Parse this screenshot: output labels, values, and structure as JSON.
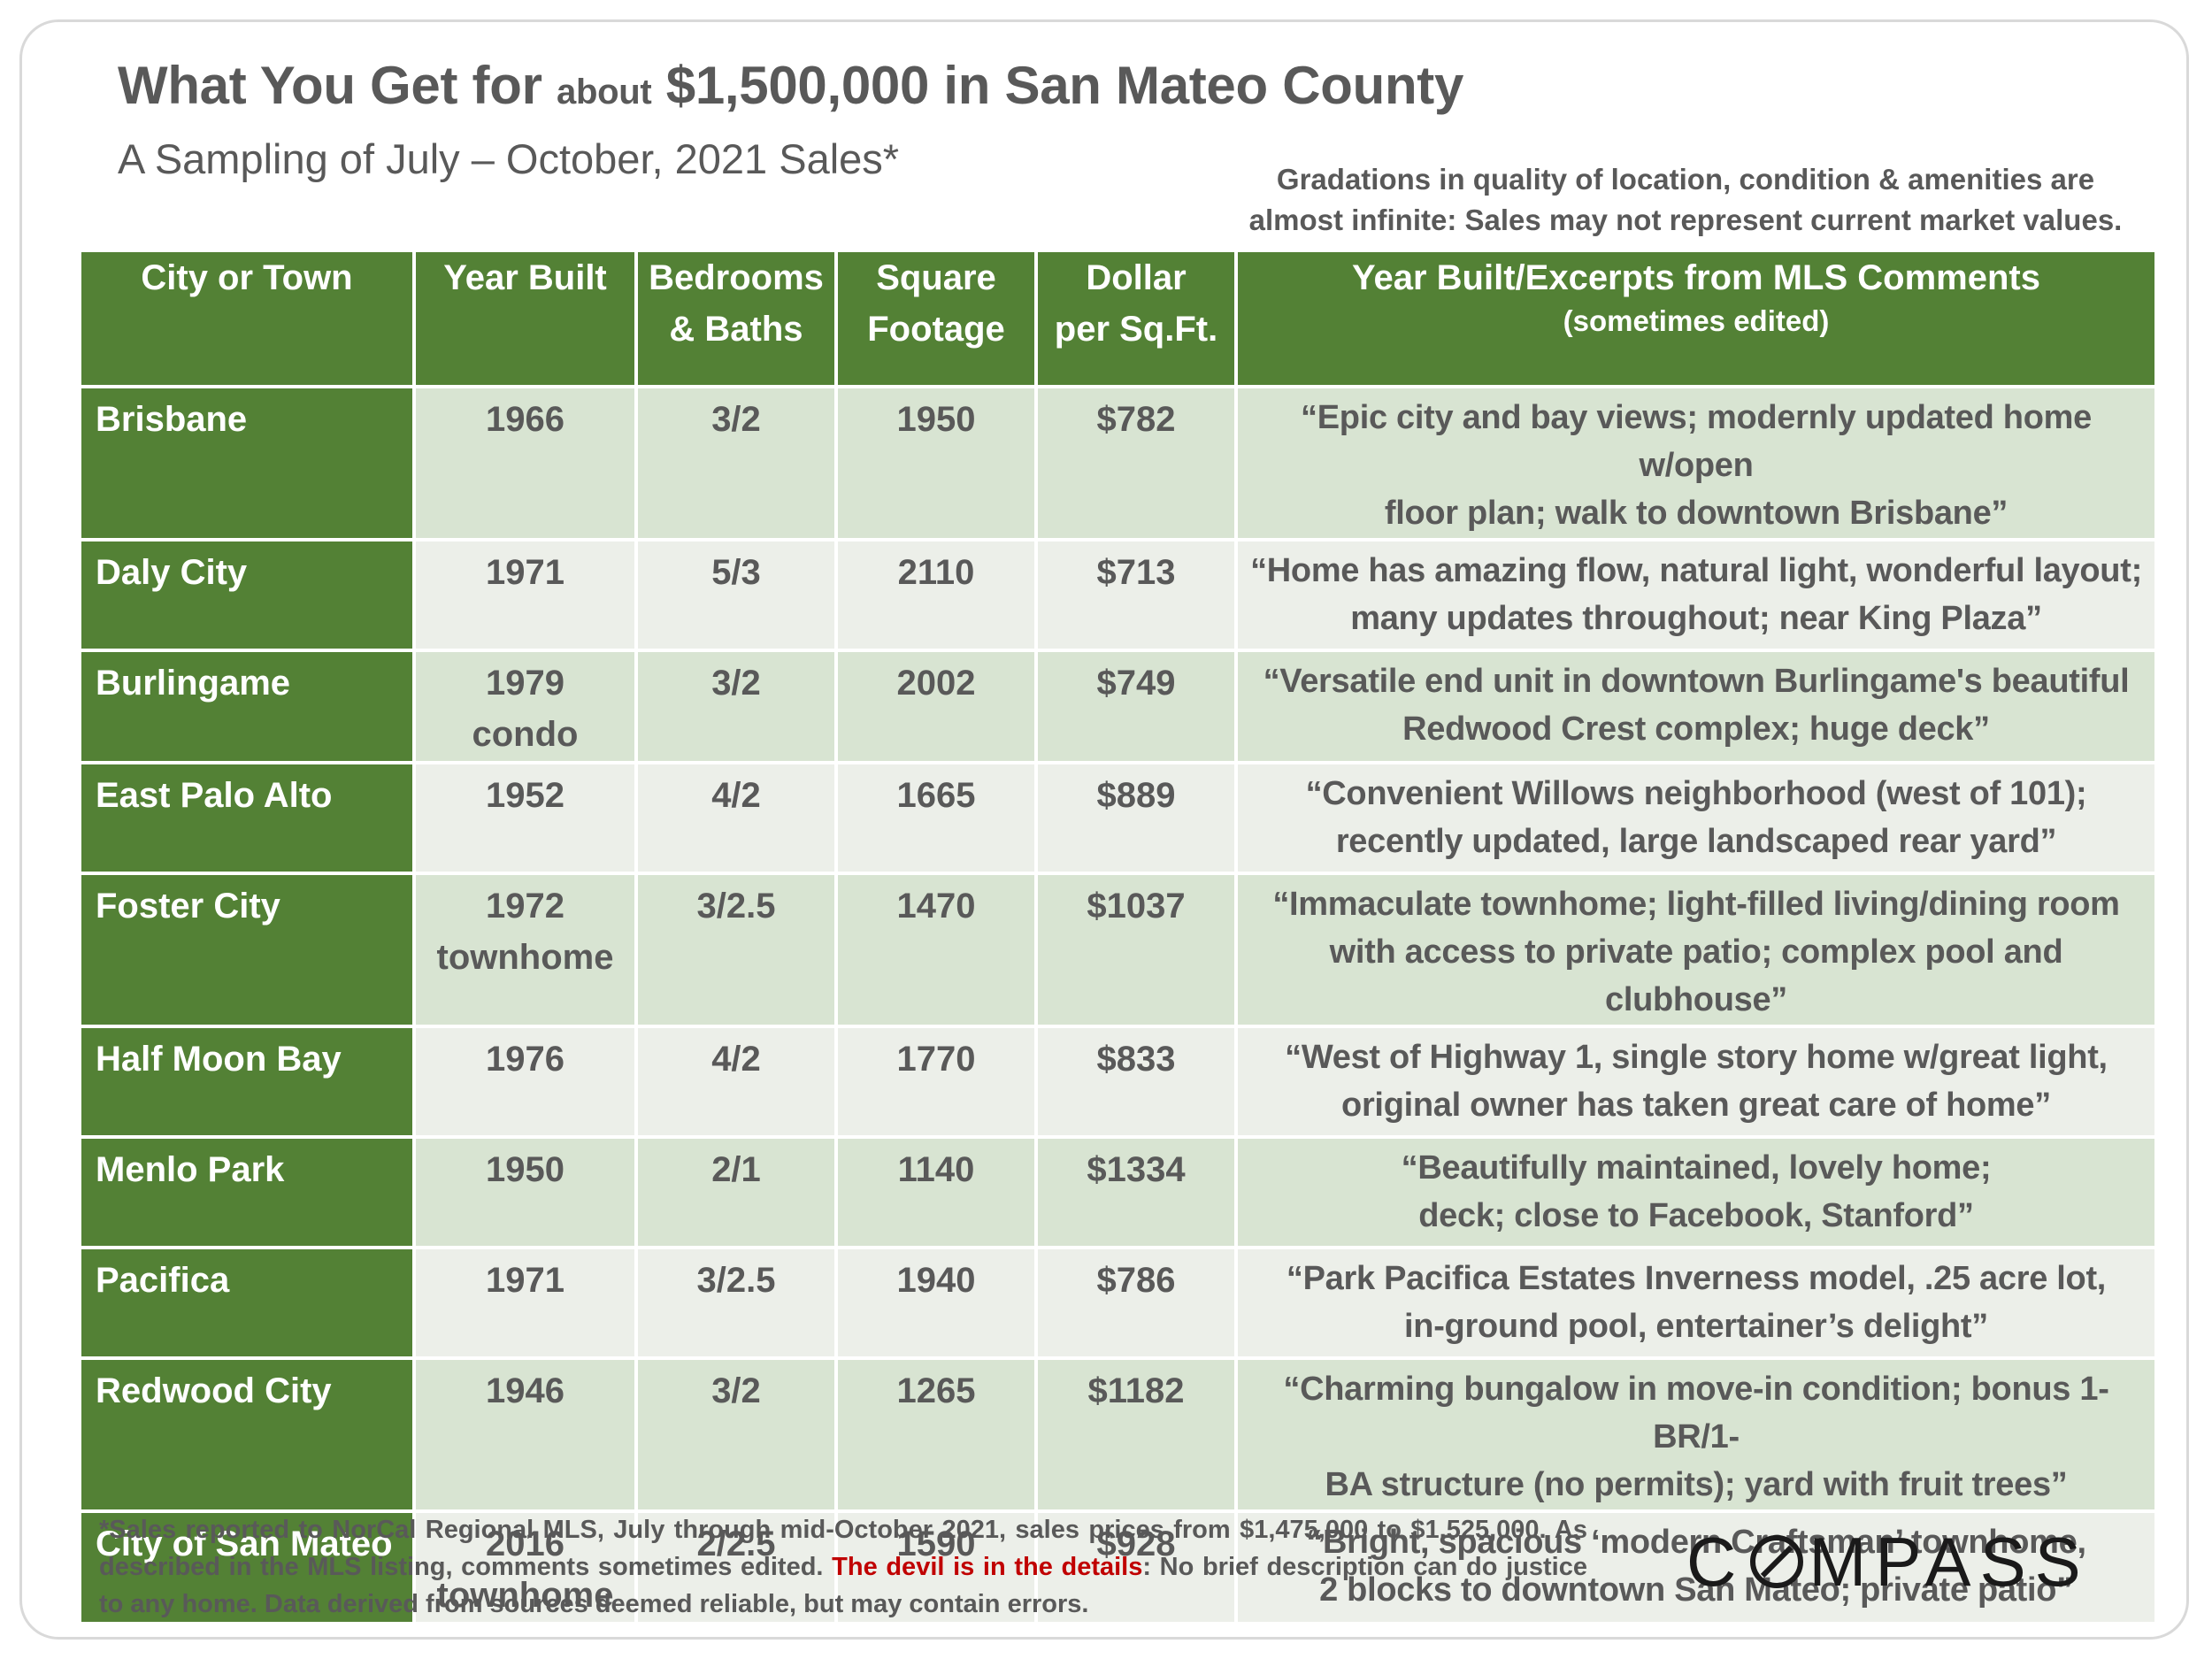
{
  "title": {
    "prefix": "What You Get for ",
    "small": "about",
    "suffix": " $1,500,000 in San Mateo County"
  },
  "subtitle": "A Sampling of July – October, 2021 Sales*",
  "note": {
    "line1": "Gradations in quality of location, condition & amenities are",
    "line2": "almost infinite: Sales may not represent current market values."
  },
  "table": {
    "headers": {
      "city": "City or Town",
      "year_built": "Year Built",
      "beds_line1": "Bedrooms",
      "beds_line2": "& Baths",
      "sqft_line1": "Square",
      "sqft_line2": "Footage",
      "dollar_line1": "Dollar",
      "dollar_line2": "per Sq.Ft.",
      "comments_line1": "Year Built/Excerpts from MLS Comments",
      "comments_line2": "(sometimes edited)"
    },
    "rows": [
      {
        "city": "Brisbane",
        "year": "1966",
        "type": "",
        "beds_baths": "3/2",
        "sqft": "1950",
        "dollar_sqft": "$782",
        "comment_line1": "“Epic city and bay views; modernly updated home w/open",
        "comment_line2": "floor plan; walk to downtown Brisbane”"
      },
      {
        "city": "Daly City",
        "year": "1971",
        "type": "",
        "beds_baths": "5/3",
        "sqft": "2110",
        "dollar_sqft": "$713",
        "comment_line1": "“Home has amazing flow, natural light, wonderful layout;",
        "comment_line2": "many updates throughout; near King Plaza”"
      },
      {
        "city": "Burlingame",
        "year": "1979",
        "type": "condo",
        "beds_baths": "3/2",
        "sqft": "2002",
        "dollar_sqft": "$749",
        "comment_line1": "“Versatile end unit in downtown Burlingame's beautiful",
        "comment_line2": "Redwood Crest complex; huge deck”"
      },
      {
        "city": "East Palo Alto",
        "year": "1952",
        "type": "",
        "beds_baths": "4/2",
        "sqft": "1665",
        "dollar_sqft": "$889",
        "comment_line1": "“Convenient Willows neighborhood (west of 101);",
        "comment_line2": "recently updated, large landscaped rear yard”"
      },
      {
        "city": "Foster City",
        "year": "1972",
        "type": "townhome",
        "beds_baths": "3/2.5",
        "sqft": "1470",
        "dollar_sqft": "$1037",
        "comment_line1": "“Immaculate townhome; light-filled living/dining room",
        "comment_line2": "with access to private patio; complex pool and clubhouse”"
      },
      {
        "city": "Half Moon Bay",
        "year": "1976",
        "type": "",
        "beds_baths": "4/2",
        "sqft": "1770",
        "dollar_sqft": "$833",
        "comment_line1": "“West of Highway 1, single story home w/great light,",
        "comment_line2": "original owner has taken great care of home”"
      },
      {
        "city": "Menlo Park",
        "year": "1950",
        "type": "",
        "beds_baths": "2/1",
        "sqft": "1140",
        "dollar_sqft": "$1334",
        "comment_line1": "“Beautifully maintained, lovely home;",
        "comment_line2": "deck; close to Facebook, Stanford”"
      },
      {
        "city": "Pacifica",
        "year": "1971",
        "type": "",
        "beds_baths": "3/2.5",
        "sqft": "1940",
        "dollar_sqft": "$786",
        "comment_line1": "“Park Pacifica Estates Inverness model, .25 acre lot,",
        "comment_line2": "in-ground pool, entertainer’s delight”"
      },
      {
        "city": "Redwood City",
        "year": "1946",
        "type": "",
        "beds_baths": "3/2",
        "sqft": "1265",
        "dollar_sqft": "$1182",
        "comment_line1": "“Charming bungalow in move-in condition; bonus 1-BR/1-",
        "comment_line2": "BA structure (no permits); yard with fruit trees”"
      },
      {
        "city": "City of San Mateo",
        "year": "2016",
        "type": "townhome",
        "beds_baths": "2/2.5",
        "sqft": "1590",
        "dollar_sqft": "$928",
        "comment_line1": "“Bright, spacious ‘modern Craftsman’ townhome,",
        "comment_line2": "2 blocks to downtown San Mateo; private patio”"
      }
    ]
  },
  "footnote": {
    "part1": "*Sales reported to NorCal Regional MLS, July through mid-October 2021, sales prices from $1,475,000 to $1,525,000. As described in the MLS listing, comments sometimes edited. ",
    "devil": "The devil is in the details",
    "part2": ": No brief description can do justice to any home. Data derived from sources deemed reliable, but may contain errors."
  },
  "logo": {
    "left": "C",
    "right": "MPASS"
  },
  "colors": {
    "header_green": "#538135",
    "row_light_green": "#d8e4d2",
    "row_light_gray": "#ecefe9",
    "text_gray": "#595959",
    "devil_red": "#c00000"
  }
}
